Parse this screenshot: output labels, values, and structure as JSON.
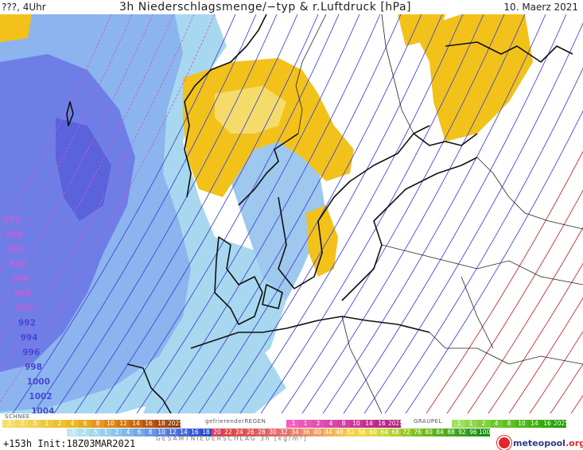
{
  "header": {
    "left": "???, 4Uhr",
    "title": "3h Niederschlagsmenge/−typ & r.Luftdruck [hPa]",
    "date": "10. Maerz 2021"
  },
  "map": {
    "layers": [
      "rain-fill",
      "snow-fill",
      "isobars",
      "coastlines",
      "borders"
    ],
    "isobar_labels": [
      "976",
      "980",
      "982",
      "984",
      "986",
      "988",
      "990",
      "992",
      "994",
      "996",
      "998",
      "1000",
      "1002",
      "1004"
    ],
    "colors": {
      "snow_light": "#a8d8ef",
      "snow_mid": "#8cb4ee",
      "snow_dark": "#6470e0",
      "rain_yellow": "#f2c21a",
      "rain_light": "#f5dc6a",
      "isobar_blue": "#4747d6",
      "isobar_red": "#c03030",
      "isobar_pink": "#c060d8",
      "coast": "#111111"
    }
  },
  "legend": {
    "regen": {
      "name": "SCHNEE",
      "values": [
        ".1",
        ".2",
        ".5",
        "1",
        "2",
        "4",
        "6",
        "8",
        "10",
        "12",
        "14",
        "16",
        "18",
        "2025+"
      ],
      "colors": [
        "#f3e070",
        "#f3d860",
        "#f2d050",
        "#f0c840",
        "#eec030",
        "#ecb828",
        "#e8a820",
        "#e49820",
        "#dc8818",
        "#d47810",
        "#c86810",
        "#b85810",
        "#a84810",
        "#984010"
      ]
    },
    "gefrierender": {
      "name": "gefrierenderREGEN",
      "values": [
        ".1",
        "1",
        "2",
        "4",
        "8",
        "10",
        "14",
        "16",
        "2025+"
      ],
      "colors": [
        "#f060c0",
        "#e858b8",
        "#e050b0",
        "#d848a8",
        "#d040a0",
        "#c83898",
        "#c03090",
        "#b82888",
        "#b02080"
      ]
    },
    "graupel": {
      "name": "GRAUPEL",
      "values": [
        ".1",
        "1",
        "2",
        "4",
        "8",
        "10",
        "14",
        "16",
        "2025+"
      ],
      "colors": [
        "#a0e060",
        "#90d850",
        "#80d040",
        "#70c830",
        "#60c020",
        "#50b818",
        "#40b010",
        "#30a808",
        "#20a000"
      ]
    },
    "schnee": {
      "values": [
        ".1",
        ".2",
        ".5",
        "1",
        "2",
        "4",
        "6",
        "8",
        "10",
        "12",
        "14",
        "16",
        "18",
        "20",
        "22",
        "24",
        "26",
        "28",
        "30",
        "32",
        "34",
        "36",
        "40",
        "44",
        "48",
        "52",
        "56",
        "60",
        "64",
        "68",
        "72",
        "76",
        "80",
        "84",
        "88",
        "92",
        "96",
        "100"
      ],
      "colors": [
        "#bfe8f0",
        "#b0e0f0",
        "#a4d8ee",
        "#98d0ec",
        "#8cc4ea",
        "#80b8e8",
        "#74a8e6",
        "#6898e4",
        "#5c88e0",
        "#5078dc",
        "#4468d8",
        "#3858d4",
        "#3048cc",
        "#d84060",
        "#e04848",
        "#e05050",
        "#e05858",
        "#e06060",
        "#e46868",
        "#e47070",
        "#e88070",
        "#ec9068",
        "#f0a060",
        "#f2b058",
        "#f4c050",
        "#f6d048",
        "#f0d840",
        "#e0d840",
        "#c8d838",
        "#b0d030",
        "#98c828",
        "#80c020",
        "#68b818",
        "#58b018",
        "#48a818",
        "#38a018",
        "#289818",
        "#189010"
      ]
    },
    "gesamt": "GESAMTNIEDERSCHLAG 3h [kg/m²]"
  },
  "footer": {
    "init": "+153h Init:18Z03MAR2021",
    "brand": "meteopool",
    "brand_tld": ".org"
  }
}
